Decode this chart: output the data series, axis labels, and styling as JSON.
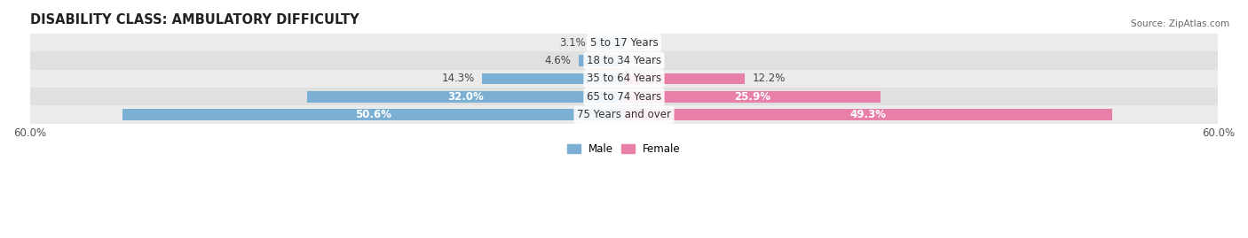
{
  "title": "DISABILITY CLASS: AMBULATORY DIFFICULTY",
  "source": "Source: ZipAtlas.com",
  "categories": [
    "5 to 17 Years",
    "18 to 34 Years",
    "35 to 64 Years",
    "65 to 74 Years",
    "75 Years and over"
  ],
  "male_values": [
    3.1,
    4.6,
    14.3,
    32.0,
    50.6
  ],
  "female_values": [
    0.0,
    0.0,
    12.2,
    25.9,
    49.3
  ],
  "max_val": 60.0,
  "male_color": "#7bafd4",
  "female_color": "#e87fa8",
  "male_label": "Male",
  "female_label": "Female",
  "bg_row_colors": [
    "#ebebeb",
    "#e0e0e0"
  ],
  "title_fontsize": 10.5,
  "label_fontsize": 8.5,
  "tick_fontsize": 8.5,
  "bar_height": 0.62,
  "background_color": "#ffffff"
}
